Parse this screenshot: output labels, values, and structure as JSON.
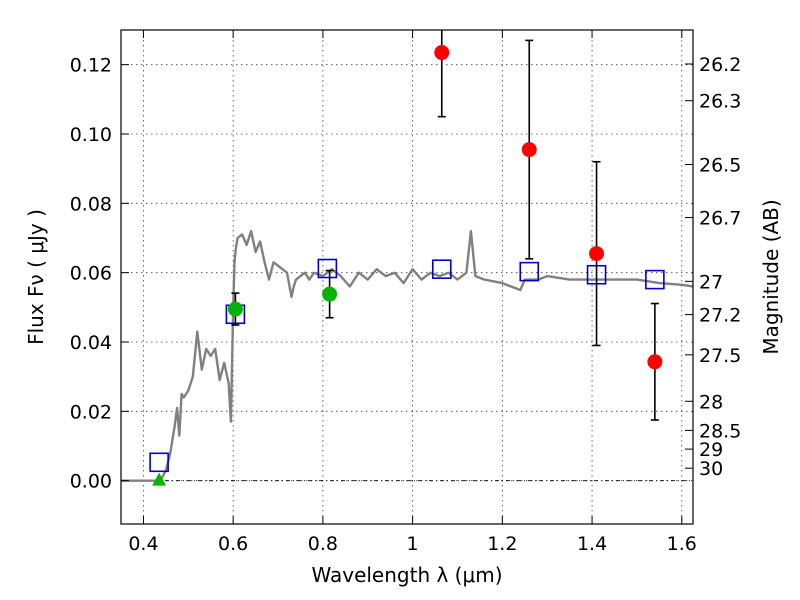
{
  "chart_data": {
    "type": "scatter",
    "title": "",
    "xlabel": "Wavelength  λ (μm)",
    "ylabel": "Flux  Fν  ( μJy )",
    "y2label": "Magnitude (AB)",
    "xlim": [
      0.35,
      1.625
    ],
    "ylim": [
      -0.0125,
      0.13
    ],
    "grid": true,
    "x_ticks": [
      0.4,
      0.6,
      0.8,
      1.0,
      1.2,
      1.4,
      1.6
    ],
    "x_tick_labels": [
      "0.4",
      "0.6",
      "0.8",
      "1",
      "1.2",
      "1.4",
      "1.6"
    ],
    "y_ticks": [
      0.0,
      0.02,
      0.04,
      0.06,
      0.08,
      0.1,
      0.12
    ],
    "y_tick_labels": [
      "0.00",
      "0.02",
      "0.04",
      "0.06",
      "0.08",
      "0.10",
      "0.12"
    ],
    "mag_ticks": [
      {
        "label": "26.2",
        "flux": 0.1202
      },
      {
        "label": "26.3",
        "flux": 0.1096
      },
      {
        "label": "26.5",
        "flux": 0.0912
      },
      {
        "label": "26.7",
        "flux": 0.0759
      },
      {
        "label": "27",
        "flux": 0.0575
      },
      {
        "label": "27.2",
        "flux": 0.0479
      },
      {
        "label": "27.5",
        "flux": 0.0363
      },
      {
        "label": "28",
        "flux": 0.0229
      },
      {
        "label": "28.5",
        "flux": 0.0145
      },
      {
        "label": "29",
        "flux": 0.0091
      },
      {
        "label": "30",
        "flux": 0.0036
      }
    ],
    "series": [
      {
        "kind": "line",
        "color": "#808080",
        "x": [
          0.35,
          0.4,
          0.43,
          0.44,
          0.45,
          0.46,
          0.47,
          0.475,
          0.48,
          0.485,
          0.49,
          0.5,
          0.51,
          0.52,
          0.53,
          0.54,
          0.55,
          0.56,
          0.57,
          0.58,
          0.59,
          0.595,
          0.6,
          0.603,
          0.606,
          0.61,
          0.62,
          0.63,
          0.64,
          0.65,
          0.66,
          0.67,
          0.68,
          0.69,
          0.7,
          0.72,
          0.73,
          0.735,
          0.74,
          0.76,
          0.77,
          0.78,
          0.8,
          0.82,
          0.84,
          0.86,
          0.88,
          0.9,
          0.92,
          0.94,
          0.96,
          0.98,
          1.0,
          1.02,
          1.04,
          1.06,
          1.08,
          1.1,
          1.12,
          1.13,
          1.14,
          1.16,
          1.2,
          1.24,
          1.25,
          1.26,
          1.28,
          1.3,
          1.35,
          1.4,
          1.45,
          1.5,
          1.55,
          1.6,
          1.625
        ],
        "y": [
          0.0,
          0.0,
          0.0,
          0.0005,
          0.003,
          0.008,
          0.016,
          0.021,
          0.013,
          0.025,
          0.024,
          0.026,
          0.03,
          0.043,
          0.032,
          0.038,
          0.036,
          0.038,
          0.029,
          0.034,
          0.028,
          0.017,
          0.05,
          0.063,
          0.067,
          0.07,
          0.071,
          0.068,
          0.072,
          0.066,
          0.069,
          0.063,
          0.058,
          0.063,
          0.062,
          0.06,
          0.053,
          0.056,
          0.058,
          0.06,
          0.058,
          0.06,
          0.059,
          0.061,
          0.059,
          0.056,
          0.06,
          0.058,
          0.061,
          0.059,
          0.06,
          0.057,
          0.061,
          0.058,
          0.06,
          0.059,
          0.06,
          0.058,
          0.06,
          0.072,
          0.059,
          0.058,
          0.057,
          0.055,
          0.058,
          0.058,
          0.058,
          0.059,
          0.058,
          0.058,
          0.058,
          0.058,
          0.057,
          0.0565,
          0.056
        ]
      },
      {
        "kind": "model-photometry",
        "marker": "open-square",
        "color": "#0000cc",
        "x": [
          0.435,
          0.605,
          0.81,
          1.065,
          1.26,
          1.41,
          1.54
        ],
        "y": [
          0.0053,
          0.048,
          0.0612,
          0.061,
          0.0603,
          0.0594,
          0.058
        ]
      },
      {
        "kind": "observed-photometry",
        "marker": "circle",
        "color": "#00b400",
        "x": [
          0.605,
          0.815
        ],
        "y": [
          0.0495,
          0.0538
        ],
        "y_err": [
          0.0046,
          0.0068
        ]
      },
      {
        "kind": "upper-limit",
        "marker": "triangle",
        "color": "#00b400",
        "x": [
          0.435
        ],
        "y": [
          0.0
        ]
      },
      {
        "kind": "observed-photometry",
        "marker": "circle",
        "color": "#ff0000",
        "x": [
          1.065,
          1.26,
          1.41,
          1.54
        ],
        "y": [
          0.1235,
          0.0955,
          0.0655,
          0.0343
        ],
        "y_err_low": [
          0.0185,
          0.0315,
          0.0265,
          0.0168
        ],
        "y_err_high": [
          0.0185,
          0.0315,
          0.0265,
          0.0168
        ]
      }
    ]
  }
}
